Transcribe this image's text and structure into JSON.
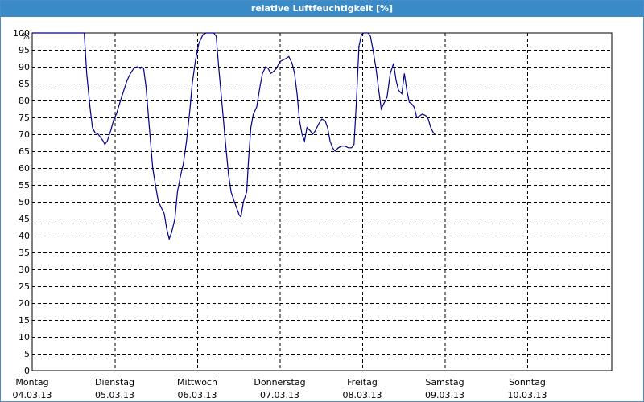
{
  "window": {
    "title": "relative Luftfeuchtigkeit [%]"
  },
  "chart_data": {
    "type": "line",
    "title": "relative Luftfeuchtigkeit [%]",
    "ylabel": "%",
    "ylim": [
      0,
      100
    ],
    "yticks": [
      0,
      5,
      10,
      15,
      20,
      25,
      30,
      35,
      40,
      45,
      50,
      55,
      60,
      65,
      70,
      75,
      80,
      85,
      90,
      95,
      100
    ],
    "xlim": [
      0,
      7
    ],
    "xunit": "days from Montag 04.03.13 00:00",
    "days": [
      {
        "name": "Montag",
        "date": "04.03.13"
      },
      {
        "name": "Dienstag",
        "date": "05.03.13"
      },
      {
        "name": "Mittwoch",
        "date": "06.03.13"
      },
      {
        "name": "Donnerstag",
        "date": "07.03.13"
      },
      {
        "name": "Freitag",
        "date": "08.03.13"
      },
      {
        "name": "Samstag",
        "date": "09.03.13"
      },
      {
        "name": "Sonntag",
        "date": "10.03.13"
      }
    ],
    "grid": true,
    "line_color": "#00008b",
    "series": [
      {
        "name": "",
        "points": [
          [
            0.0,
            100
          ],
          [
            0.63,
            100
          ],
          [
            0.66,
            88
          ],
          [
            0.7,
            78
          ],
          [
            0.73,
            72
          ],
          [
            0.76,
            70.5
          ],
          [
            0.8,
            70
          ],
          [
            0.83,
            69
          ],
          [
            0.86,
            68
          ],
          [
            0.88,
            67
          ],
          [
            0.91,
            68
          ],
          [
            0.95,
            71
          ],
          [
            0.99,
            74.5
          ],
          [
            1.02,
            76
          ],
          [
            1.07,
            80
          ],
          [
            1.11,
            83
          ],
          [
            1.15,
            86
          ],
          [
            1.19,
            88
          ],
          [
            1.23,
            89.5
          ],
          [
            1.27,
            90
          ],
          [
            1.31,
            89.5
          ],
          [
            1.33,
            90
          ],
          [
            1.35,
            89.5
          ],
          [
            1.38,
            84
          ],
          [
            1.42,
            72
          ],
          [
            1.46,
            60
          ],
          [
            1.5,
            54
          ],
          [
            1.53,
            50
          ],
          [
            1.57,
            48
          ],
          [
            1.6,
            46.5
          ],
          [
            1.63,
            42
          ],
          [
            1.66,
            39
          ],
          [
            1.69,
            41
          ],
          [
            1.73,
            45
          ],
          [
            1.76,
            53
          ],
          [
            1.8,
            58
          ],
          [
            1.83,
            61
          ],
          [
            1.87,
            68
          ],
          [
            1.91,
            77
          ],
          [
            1.94,
            85
          ],
          [
            1.98,
            92
          ],
          [
            2.02,
            97
          ],
          [
            2.07,
            99.5
          ],
          [
            2.11,
            100
          ],
          [
            2.2,
            100
          ],
          [
            2.23,
            99
          ],
          [
            2.26,
            90
          ],
          [
            2.3,
            79
          ],
          [
            2.34,
            68
          ],
          [
            2.38,
            58
          ],
          [
            2.41,
            53
          ],
          [
            2.45,
            50
          ],
          [
            2.48,
            48
          ],
          [
            2.51,
            46
          ],
          [
            2.53,
            45.5
          ],
          [
            2.56,
            50
          ],
          [
            2.6,
            53
          ],
          [
            2.62,
            62
          ],
          [
            2.65,
            72
          ],
          [
            2.68,
            76
          ],
          [
            2.72,
            78
          ],
          [
            2.76,
            84
          ],
          [
            2.79,
            88
          ],
          [
            2.83,
            90
          ],
          [
            2.86,
            89.5
          ],
          [
            2.89,
            88
          ],
          [
            2.92,
            88.5
          ],
          [
            2.96,
            89.5
          ],
          [
            3.0,
            91.5
          ],
          [
            3.04,
            92
          ],
          [
            3.08,
            92.5
          ],
          [
            3.11,
            93
          ],
          [
            3.15,
            91
          ],
          [
            3.18,
            88
          ],
          [
            3.21,
            82
          ],
          [
            3.24,
            74
          ],
          [
            3.27,
            70
          ],
          [
            3.3,
            68
          ],
          [
            3.33,
            72
          ],
          [
            3.37,
            71
          ],
          [
            3.4,
            70
          ],
          [
            3.43,
            71
          ],
          [
            3.47,
            73
          ],
          [
            3.51,
            74.5
          ],
          [
            3.55,
            74
          ],
          [
            3.58,
            72
          ],
          [
            3.61,
            68
          ],
          [
            3.64,
            66
          ],
          [
            3.67,
            65
          ],
          [
            3.71,
            66
          ],
          [
            3.75,
            66.5
          ],
          [
            3.79,
            66.5
          ],
          [
            3.83,
            66
          ],
          [
            3.87,
            66
          ],
          [
            3.9,
            67
          ],
          [
            3.93,
            80
          ],
          [
            3.96,
            96
          ],
          [
            3.99,
            99.5
          ],
          [
            4.02,
            100
          ],
          [
            4.07,
            100
          ],
          [
            4.1,
            99
          ],
          [
            4.13,
            95
          ],
          [
            4.17,
            89
          ],
          [
            4.2,
            83
          ],
          [
            4.23,
            77.5
          ],
          [
            4.26,
            79
          ],
          [
            4.3,
            81
          ],
          [
            4.34,
            88
          ],
          [
            4.38,
            91
          ],
          [
            4.41,
            86
          ],
          [
            4.44,
            83
          ],
          [
            4.48,
            82
          ],
          [
            4.51,
            88
          ],
          [
            4.54,
            83
          ],
          [
            4.57,
            79.5
          ],
          [
            4.6,
            79
          ],
          [
            4.63,
            78
          ],
          [
            4.66,
            75
          ],
          [
            4.7,
            75.5
          ],
          [
            4.73,
            76
          ],
          [
            4.77,
            75.5
          ],
          [
            4.8,
            74.5
          ],
          [
            4.83,
            72
          ],
          [
            4.86,
            70.5
          ],
          [
            4.88,
            70
          ]
        ]
      }
    ]
  }
}
